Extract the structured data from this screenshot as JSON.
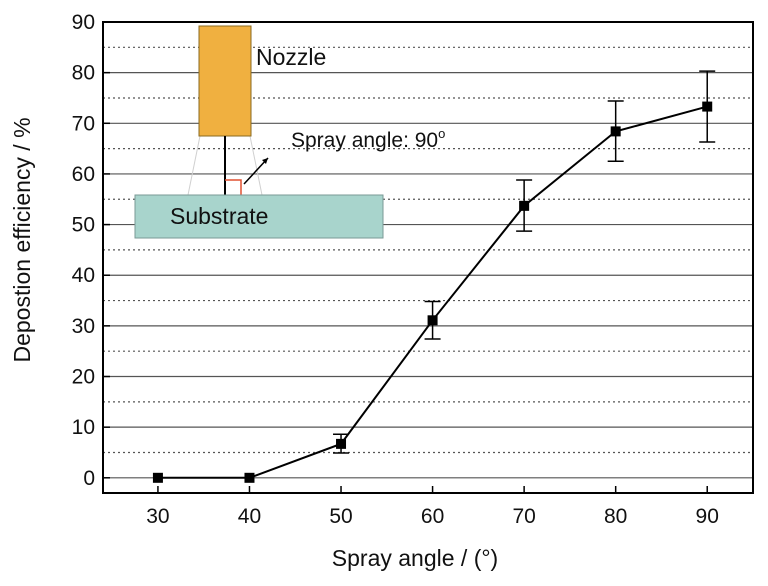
{
  "chart_data": {
    "type": "line",
    "title": "",
    "xlabel": "Spray angle / (°)",
    "ylabel": "Depostion efficiency / %",
    "xlim": [
      24,
      95
    ],
    "ylim": [
      -3,
      90
    ],
    "xticks": [
      30,
      40,
      50,
      60,
      70,
      80,
      90
    ],
    "yticks": [
      0,
      10,
      20,
      30,
      40,
      50,
      60,
      70,
      80,
      90
    ],
    "grid": true,
    "legend": "none",
    "series": [
      {
        "x": [
          30,
          40,
          50,
          60,
          70,
          80,
          90
        ],
        "y": [
          0,
          0,
          6.7,
          31.1,
          53.7,
          68.4,
          73.3
        ],
        "err_low": [
          0,
          0,
          1.8,
          3.7,
          5.0,
          5.9,
          7.0
        ],
        "err_high": [
          0,
          0,
          1.9,
          3.7,
          5.1,
          6.0,
          7.0
        ]
      }
    ],
    "inset": {
      "nozzle_label": "Nozzle",
      "substrate_label": "Substrate",
      "angle_label": "Spray angle: 90",
      "angle_unit": "o"
    }
  },
  "colors": {
    "nozzle": "#f0b040",
    "substrate": "#a8d4cc",
    "angle_mark": "#e05030",
    "line": "#000000"
  }
}
